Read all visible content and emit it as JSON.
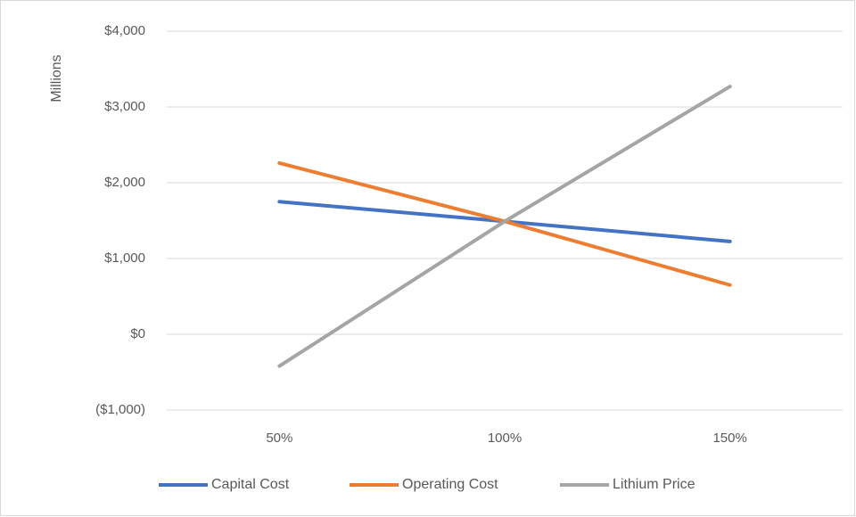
{
  "chart_data": {
    "type": "line",
    "y_label": "Millions",
    "categories": [
      "50%",
      "100%",
      "150%"
    ],
    "series": [
      {
        "name": "Capital Cost",
        "color": "#4472c4",
        "values": [
          1750,
          1490,
          1225
        ]
      },
      {
        "name": "Operating Cost",
        "color": "#ed7d31",
        "values": [
          2260,
          1490,
          650
        ]
      },
      {
        "name": "Lithium Price",
        "color": "#a5a5a5",
        "values": [
          -420,
          1490,
          3270
        ]
      }
    ],
    "ylim": [
      -1000,
      4000
    ],
    "yticks": [
      {
        "value": -1000,
        "label": "($1,000)"
      },
      {
        "value": 0,
        "label": "$0"
      },
      {
        "value": 1000,
        "label": "$1,000"
      },
      {
        "value": 2000,
        "label": "$2,000"
      },
      {
        "value": 3000,
        "label": "$3,000"
      },
      {
        "value": 4000,
        "label": "$4,000"
      }
    ],
    "grid": true,
    "legend": "bottom"
  }
}
